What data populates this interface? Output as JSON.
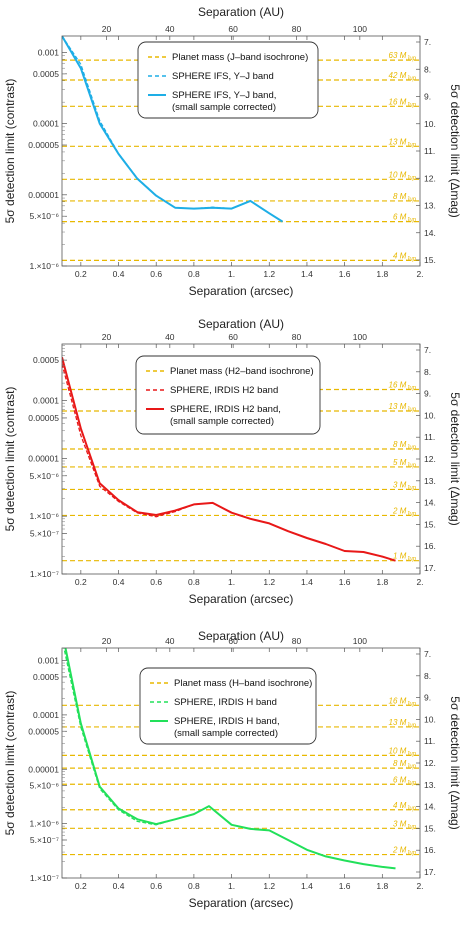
{
  "chart_data": [
    {
      "type": "line",
      "top_xlabel": "Separation (AU)",
      "xlabel": "Separation (arcsec)",
      "ylabel": "5σ detection limit (contrast)",
      "ylabel_right": "5σ detection limit (Δmag)",
      "xlim": [
        0.1,
        2.0
      ],
      "ylim": [
        1e-06,
        0.0017
      ],
      "log_y": true,
      "top_ticks": [
        "20",
        "40",
        "60",
        "80",
        "100"
      ],
      "y_ticks": [
        "0.001",
        "0.0005",
        "0.0001",
        "0.00005",
        "0.00001",
        "5.×10⁻⁶",
        "1.×10⁻⁶"
      ],
      "x_ticks": [
        "0.2",
        "0.4",
        "0.6",
        "0.8",
        "1.",
        "1.2",
        "1.4",
        "1.6",
        "1.8",
        "2."
      ],
      "right_ticks": [
        "7.",
        "8.",
        "9.",
        "10.",
        "11.",
        "12.",
        "13.",
        "14.",
        "15."
      ],
      "legend": {
        "placement": "top-right",
        "entries": [
          "Planet mass (J–band isochrone)",
          "SPHERE IFS, Y–J band",
          "SPHERE IFS, Y–J band,",
          "(small sample corrected)"
        ]
      },
      "mass_lines": [
        {
          "label": "63 M",
          "contrast": 0.00078
        },
        {
          "label": "42 M",
          "contrast": 0.00041
        },
        {
          "label": "16 M",
          "contrast": 0.000175
        },
        {
          "label": "13 M",
          "contrast": 4.8e-05
        },
        {
          "label": "10 M",
          "contrast": 1.65e-05
        },
        {
          "label": "8 M",
          "contrast": 8.2e-06
        },
        {
          "label": "6 M",
          "contrast": 4.2e-06
        },
        {
          "label": "4 M",
          "contrast": 1.2e-06
        }
      ],
      "series": [
        {
          "name": "SPHERE IFS, Y–J band",
          "style": "dashed",
          "color": "#1eaee6",
          "x": [
            0.1,
            0.2,
            0.3,
            0.4,
            0.5,
            0.6,
            0.7,
            0.8,
            0.9,
            1.0,
            1.1,
            1.2,
            1.27
          ],
          "y": [
            0.0017,
            0.00068,
            0.00011,
            3.8e-05,
            1.7e-05,
            9.8e-06,
            6.6e-06,
            6.4e-06,
            6.7e-06,
            6.4e-06,
            8.2e-06,
            5.5e-06,
            4.2e-06
          ]
        },
        {
          "name": "SPHERE IFS, Y–J band, (small sample corrected)",
          "style": "solid",
          "color": "#1eaee6",
          "x": [
            0.1,
            0.2,
            0.3,
            0.4,
            0.5,
            0.6,
            0.7,
            0.8,
            0.9,
            1.0,
            1.1,
            1.2,
            1.27
          ],
          "y": [
            0.0017,
            0.0006,
            0.0001,
            3.75e-05,
            1.68e-05,
            9.7e-06,
            6.6e-06,
            6.4e-06,
            6.6e-06,
            6.4e-06,
            8.2e-06,
            5.5e-06,
            4.2e-06
          ]
        }
      ]
    },
    {
      "type": "line",
      "top_xlabel": "Separation (AU)",
      "xlabel": "Separation (arcsec)",
      "ylabel": "5σ detection limit (contrast)",
      "ylabel_right": "5σ detection limit (Δmag)",
      "xlim": [
        0.1,
        2.0
      ],
      "ylim": [
        1e-07,
        0.00095
      ],
      "log_y": true,
      "top_ticks": [
        "20",
        "40",
        "60",
        "80",
        "100"
      ],
      "y_ticks": [
        "0.0005",
        "0.0001",
        "0.00005",
        "0.00001",
        "5.×10⁻⁶",
        "1.×10⁻⁶",
        "5.×10⁻⁷",
        "1.×10⁻⁷"
      ],
      "x_ticks": [
        "0.2",
        "0.4",
        "0.6",
        "0.8",
        "1.",
        "1.2",
        "1.4",
        "1.6",
        "1.8",
        "2."
      ],
      "right_ticks": [
        "7.",
        "8.",
        "9.",
        "10.",
        "11.",
        "12.",
        "13.",
        "14.",
        "15.",
        "16.",
        "17."
      ],
      "legend": {
        "placement": "top-right",
        "entries": [
          "Planet mass (H2–band isochrone)",
          "SPHERE, IRDIS H2 band",
          "SPHERE, IRDIS H2 band,",
          "(small sample corrected)"
        ]
      },
      "mass_lines": [
        {
          "label": "16 M",
          "contrast": 0.000155
        },
        {
          "label": "13 M",
          "contrast": 6.6e-05
        },
        {
          "label": "8 M",
          "contrast": 1.45e-05
        },
        {
          "label": "5 M",
          "contrast": 7.1e-06
        },
        {
          "label": "3 M",
          "contrast": 2.9e-06
        },
        {
          "label": "2 M",
          "contrast": 1.03e-06
        },
        {
          "label": "1 M",
          "contrast": 1.7e-07
        }
      ],
      "series": [
        {
          "name": "SPHERE, IRDIS H2 band",
          "style": "dashed",
          "color": "#e81818",
          "x": [
            0.1,
            0.2,
            0.3,
            0.4,
            0.5,
            0.6,
            0.7,
            0.8,
            0.9,
            1.0,
            1.1,
            1.2,
            1.3,
            1.4,
            1.5,
            1.6,
            1.7,
            1.8,
            1.87
          ],
          "y": [
            0.00043,
            2.5e-05,
            3.3e-06,
            1.8e-06,
            1.14e-06,
            9.8e-07,
            1.2e-06,
            1.6e-06,
            1.7e-06,
            1.15e-06,
            9e-07,
            7.5e-07,
            5.5e-07,
            4.2e-07,
            3.3e-07,
            2.5e-07,
            2.4e-07,
            2e-07,
            1.7e-07
          ]
        },
        {
          "name": "SPHERE, IRDIS H2 band, (small sample corrected)",
          "style": "solid",
          "color": "#e81818",
          "x": [
            0.1,
            0.2,
            0.3,
            0.4,
            0.5,
            0.6,
            0.7,
            0.8,
            0.9,
            1.0,
            1.1,
            1.2,
            1.3,
            1.4,
            1.5,
            1.6,
            1.7,
            1.8,
            1.87
          ],
          "y": [
            0.00056,
            3.3e-05,
            3.7e-06,
            1.9e-06,
            1.17e-06,
            1.05e-06,
            1.25e-06,
            1.6e-06,
            1.7e-06,
            1.15e-06,
            9e-07,
            7.5e-07,
            5.5e-07,
            4.2e-07,
            3.3e-07,
            2.5e-07,
            2.4e-07,
            2e-07,
            1.7e-07
          ]
        }
      ]
    },
    {
      "type": "line",
      "top_xlabel": "Separation (AU)",
      "xlabel": "Separation (arcsec)",
      "ylabel": "5σ detection limit (contrast)",
      "ylabel_right": "5σ detection limit (Δmag)",
      "xlim": [
        0.1,
        2.0
      ],
      "ylim": [
        1e-07,
        0.0017
      ],
      "log_y": true,
      "top_ticks": [
        "20",
        "40",
        "60",
        "80",
        "100"
      ],
      "y_ticks": [
        "0.001",
        "0.0005",
        "0.0001",
        "0.00005",
        "0.00001",
        "5.×10⁻⁶",
        "1.×10⁻⁶",
        "5.×10⁻⁷",
        "1.×10⁻⁷"
      ],
      "x_ticks": [
        "0.2",
        "0.4",
        "0.6",
        "0.8",
        "1.",
        "1.2",
        "1.4",
        "1.6",
        "1.8",
        "2."
      ],
      "right_ticks": [
        "7.",
        "8.",
        "9.",
        "10.",
        "11.",
        "12.",
        "13.",
        "14.",
        "15.",
        "16.",
        "17."
      ],
      "legend": {
        "placement": "top-right",
        "entries": [
          "Planet mass (H–band isochrone)",
          "SPHERE, IRDIS H band",
          "SPHERE, IRDIS H band,",
          "(small sample corrected)"
        ]
      },
      "mass_lines": [
        {
          "label": "16 M",
          "contrast": 0.00015
        },
        {
          "label": "13 M",
          "contrast": 6e-05
        },
        {
          "label": "10 M",
          "contrast": 1.8e-05
        },
        {
          "label": "8 M",
          "contrast": 1.05e-05
        },
        {
          "label": "6 M",
          "contrast": 5.3e-06
        },
        {
          "label": "4 M",
          "contrast": 1.8e-06
        },
        {
          "label": "3 M",
          "contrast": 8.2e-07
        },
        {
          "label": "2 M",
          "contrast": 2.7e-07
        }
      ],
      "series": [
        {
          "name": "SPHERE, IRDIS H band",
          "style": "dashed",
          "color": "#22e05a",
          "x": [
            0.1,
            0.2,
            0.3,
            0.4,
            0.5,
            0.6,
            0.7,
            0.8,
            0.88,
            1.0,
            1.1,
            1.2,
            1.3,
            1.4,
            1.5,
            1.6,
            1.7,
            1.8,
            1.87
          ],
          "y": [
            0.0025,
            6e-05,
            4.4e-06,
            1.8e-06,
            1.1e-06,
            9.5e-07,
            1.2e-06,
            1.5e-06,
            2.1e-06,
            9.5e-07,
            8e-07,
            7.5e-07,
            5e-07,
            3.3e-07,
            2.5e-07,
            2.1e-07,
            1.8e-07,
            1.6e-07,
            1.5e-07
          ]
        },
        {
          "name": "SPHERE, IRDIS H band, (small sample corrected)",
          "style": "solid",
          "color": "#22e05a",
          "x": [
            0.1,
            0.2,
            0.3,
            0.4,
            0.5,
            0.6,
            0.7,
            0.8,
            0.88,
            1.0,
            1.1,
            1.2,
            1.3,
            1.4,
            1.5,
            1.6,
            1.7,
            1.8,
            1.87
          ],
          "y": [
            0.0035,
            7e-05,
            4.8e-06,
            1.9e-06,
            1.2e-06,
            9.8e-07,
            1.2e-06,
            1.5e-06,
            2.1e-06,
            9.5e-07,
            8e-07,
            7.5e-07,
            5e-07,
            3.3e-07,
            2.5e-07,
            2.1e-07,
            1.8e-07,
            1.6e-07,
            1.5e-07
          ]
        }
      ]
    }
  ]
}
